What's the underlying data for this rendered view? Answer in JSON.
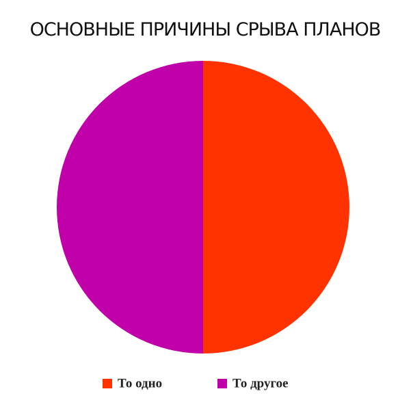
{
  "chart_data": {
    "type": "pie",
    "title": "ОСНОВНЫЕ ПРИЧИНЫ СРЫВА ПЛАНОВ",
    "categories": [
      "То одно",
      "То другое"
    ],
    "values": [
      50,
      50
    ],
    "colors": [
      "#ff3300",
      "#c000a8"
    ],
    "legend": "bottom"
  }
}
